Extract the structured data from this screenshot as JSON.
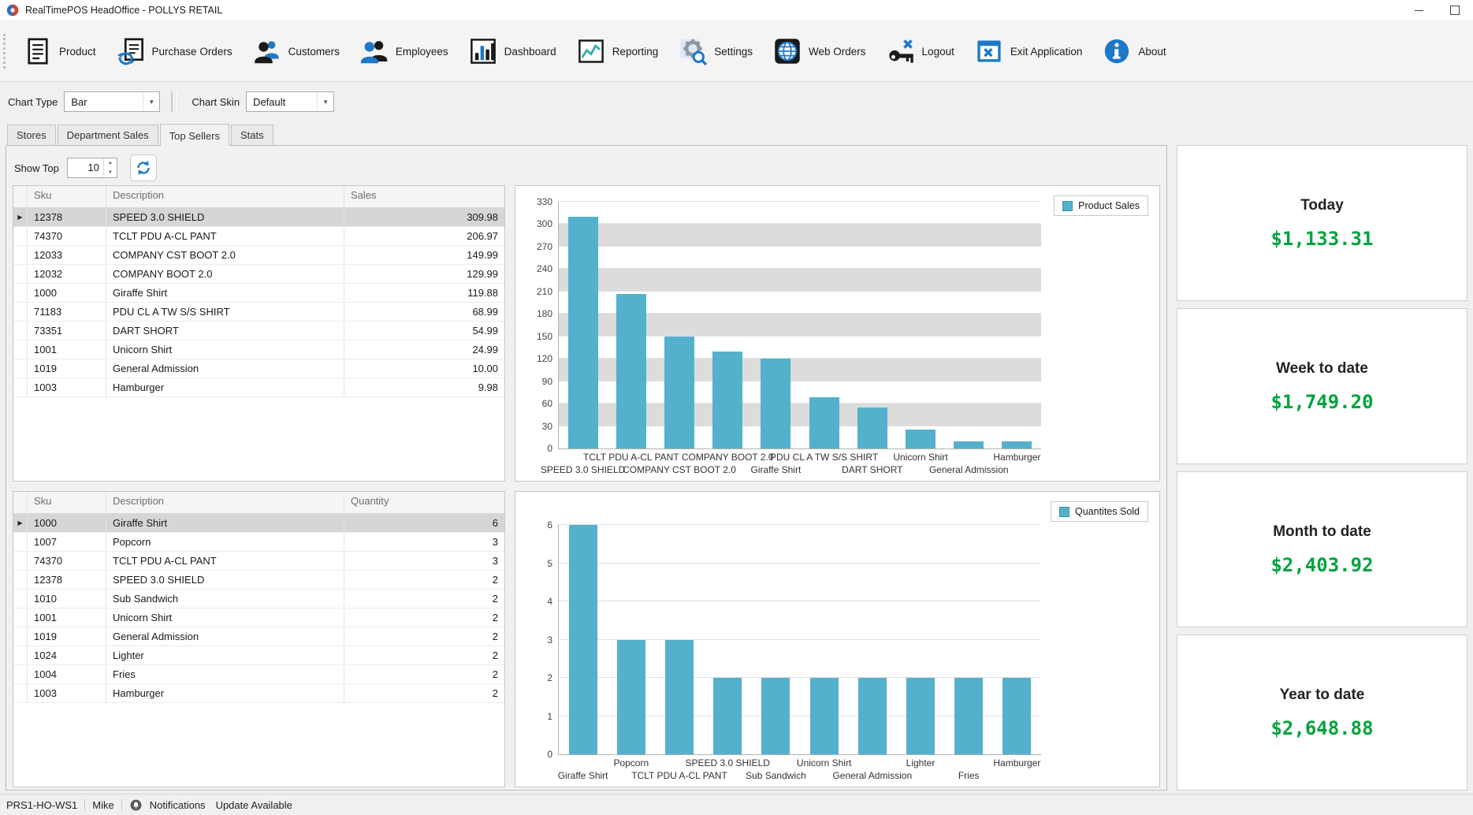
{
  "window": {
    "title": "RealTimePOS HeadOffice - POLLYS RETAIL"
  },
  "toolbar": {
    "items": [
      {
        "label": "Product",
        "icon": "product"
      },
      {
        "label": "Purchase Orders",
        "icon": "purchase-orders"
      },
      {
        "label": "Customers",
        "icon": "customers"
      },
      {
        "label": "Employees",
        "icon": "employees"
      },
      {
        "label": "Dashboard",
        "icon": "dashboard"
      },
      {
        "label": "Reporting",
        "icon": "reporting"
      },
      {
        "label": "Settings",
        "icon": "settings"
      },
      {
        "label": "Web Orders",
        "icon": "web-orders"
      },
      {
        "label": "Logout",
        "icon": "logout"
      },
      {
        "label": "Exit Application",
        "icon": "exit-application"
      },
      {
        "label": "About",
        "icon": "about"
      }
    ]
  },
  "options": {
    "chart_type_label": "Chart Type",
    "chart_type_value": "Bar",
    "chart_skin_label": "Chart Skin",
    "chart_skin_value": "Default"
  },
  "tabs": [
    {
      "label": "Stores",
      "active": false
    },
    {
      "label": "Department Sales",
      "active": false
    },
    {
      "label": "Top Sellers",
      "active": true
    },
    {
      "label": "Stats",
      "active": false
    }
  ],
  "show_top": {
    "label": "Show Top",
    "value": "10"
  },
  "sales_grid": {
    "columns": [
      "Sku",
      "Description",
      "Sales"
    ],
    "selected_index": 0,
    "rows": [
      [
        "12378",
        "SPEED 3.0 SHIELD",
        "309.98"
      ],
      [
        "74370",
        "TCLT PDU A-CL PANT",
        "206.97"
      ],
      [
        "12033",
        "COMPANY CST BOOT 2.0",
        "149.99"
      ],
      [
        "12032",
        "COMPANY BOOT 2.0",
        "129.99"
      ],
      [
        "1000",
        "Giraffe Shirt",
        "119.88"
      ],
      [
        "71183",
        "PDU CL A TW S/S SHIRT",
        "68.99"
      ],
      [
        "73351",
        "DART SHORT",
        "54.99"
      ],
      [
        "1001",
        "Unicorn Shirt",
        "24.99"
      ],
      [
        "1019",
        "General Admission",
        "10.00"
      ],
      [
        "1003",
        "Hamburger",
        "9.98"
      ]
    ]
  },
  "quantity_grid": {
    "columns": [
      "Sku",
      "Description",
      "Quantity"
    ],
    "selected_index": 0,
    "rows": [
      [
        "1000",
        "Giraffe Shirt",
        "6"
      ],
      [
        "1007",
        "Popcorn",
        "3"
      ],
      [
        "74370",
        "TCLT PDU A-CL PANT",
        "3"
      ],
      [
        "12378",
        "SPEED 3.0 SHIELD",
        "2"
      ],
      [
        "1010",
        "Sub Sandwich",
        "2"
      ],
      [
        "1001",
        "Unicorn Shirt",
        "2"
      ],
      [
        "1019",
        "General Admission",
        "2"
      ],
      [
        "1024",
        "Lighter",
        "2"
      ],
      [
        "1004",
        "Fries",
        "2"
      ],
      [
        "1003",
        "Hamburger",
        "2"
      ]
    ]
  },
  "chart_data": [
    {
      "type": "bar",
      "legend": "Product Sales",
      "legend_position": "top-right",
      "categories": [
        "SPEED 3.0 SHIELD",
        "TCLT PDU A-CL PANT",
        "COMPANY CST BOOT 2.0",
        "COMPANY BOOT 2.0",
        "Giraffe Shirt",
        "PDU CL A TW S/S SHIRT",
        "DART SHORT",
        "Unicorn Shirt",
        "General Admission",
        "Hamburger"
      ],
      "values": [
        309.98,
        206.97,
        149.99,
        129.99,
        119.88,
        68.99,
        54.99,
        24.99,
        10.0,
        9.98
      ],
      "ylim": [
        0,
        330
      ],
      "ytick_step": 30,
      "interlaced_rows": true,
      "color": "#53b1cd"
    },
    {
      "type": "bar",
      "legend": "Quantites Sold",
      "legend_position": "top-right",
      "categories": [
        "Giraffe Shirt",
        "Popcorn",
        "TCLT PDU A-CL PANT",
        "SPEED 3.0 SHIELD",
        "Sub Sandwich",
        "Unicorn Shirt",
        "General Admission",
        "Lighter",
        "Fries",
        "Hamburger"
      ],
      "values": [
        6,
        3,
        3,
        2,
        2,
        2,
        2,
        2,
        2,
        2
      ],
      "ylim": [
        0,
        6
      ],
      "ytick_step": 1,
      "interlaced_rows": false,
      "color": "#53b1cd"
    }
  ],
  "kpis": [
    {
      "title": "Today",
      "value": "$1,133.31"
    },
    {
      "title": "Week to date",
      "value": "$1,749.20"
    },
    {
      "title": "Month to date",
      "value": "$2,403.92"
    },
    {
      "title": "Year to date",
      "value": "$2,648.88"
    }
  ],
  "status_bar": {
    "workstation": "PRS1-HO-WS1",
    "user": "Mike",
    "notifications": "Notifications",
    "update": "Update Available"
  },
  "colors": {
    "bar": "#53b1cd",
    "kpi_green": "#00a33c",
    "accent_blue": "#1d79c7"
  }
}
